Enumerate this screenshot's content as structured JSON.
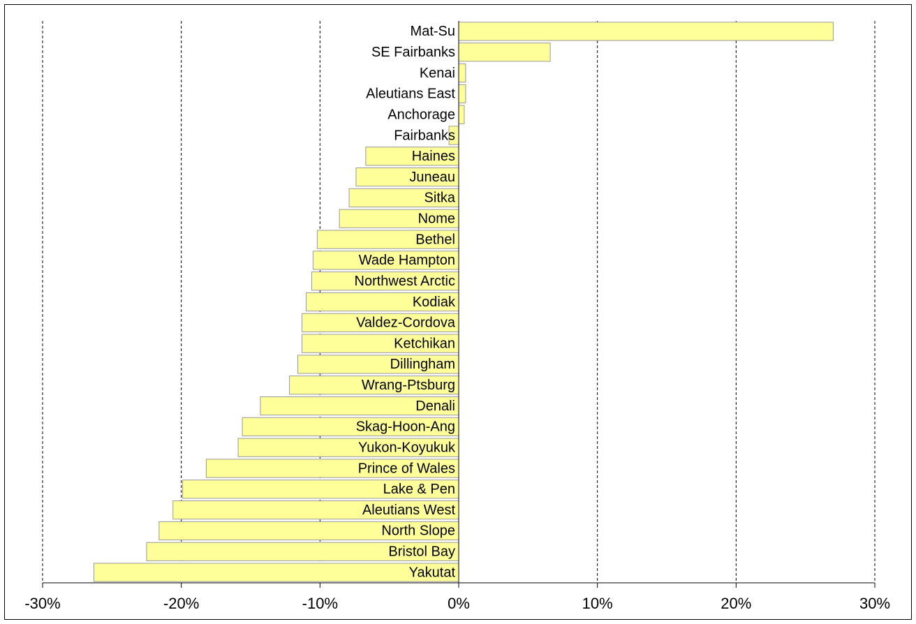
{
  "chart_data": {
    "type": "bar",
    "orientation": "horizontal",
    "categories": [
      "Mat-Su",
      "SE Fairbanks",
      "Kenai",
      "Aleutians East",
      "Anchorage",
      "Fairbanks",
      "Haines",
      "Juneau",
      "Sitka",
      "Nome",
      "Bethel",
      "Wade Hampton",
      "Northwest Arctic",
      "Kodiak",
      "Valdez-Cordova",
      "Ketchikan",
      "Dillingham",
      "Wrang-Ptsburg",
      "Denali",
      "Skag-Hoon-Ang",
      "Yukon-Koyukuk",
      "Prince of Wales",
      "Lake & Pen",
      "Aleutians West",
      "North Slope",
      "Bristol Bay",
      "Yakutat"
    ],
    "values": [
      27.0,
      6.6,
      0.5,
      0.5,
      0.4,
      -0.7,
      -6.7,
      -7.4,
      -7.9,
      -8.6,
      -10.2,
      -10.5,
      -10.6,
      -11.0,
      -11.3,
      -11.3,
      -11.6,
      -12.2,
      -14.3,
      -15.6,
      -15.9,
      -18.2,
      -19.9,
      -20.6,
      -21.6,
      -22.5,
      -26.3
    ],
    "color": "#ffff99",
    "xlim": [
      -30,
      30
    ],
    "xticks": [
      {
        "value": -30,
        "label": "-30%"
      },
      {
        "value": -20,
        "label": "-20%"
      },
      {
        "value": -10,
        "label": "-10%"
      },
      {
        "value": 0,
        "label": "0%"
      },
      {
        "value": 10,
        "label": "10%"
      },
      {
        "value": 20,
        "label": "20%"
      },
      {
        "value": 30,
        "label": "30%"
      }
    ],
    "grid": true
  }
}
